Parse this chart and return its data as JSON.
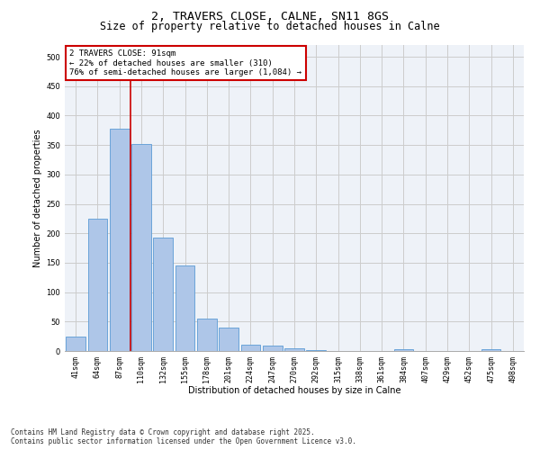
{
  "title_line1": "2, TRAVERS CLOSE, CALNE, SN11 8GS",
  "title_line2": "Size of property relative to detached houses in Calne",
  "xlabel": "Distribution of detached houses by size in Calne",
  "ylabel": "Number of detached properties",
  "categories": [
    "41sqm",
    "64sqm",
    "87sqm",
    "110sqm",
    "132sqm",
    "155sqm",
    "178sqm",
    "201sqm",
    "224sqm",
    "247sqm",
    "270sqm",
    "292sqm",
    "315sqm",
    "338sqm",
    "361sqm",
    "384sqm",
    "407sqm",
    "429sqm",
    "452sqm",
    "475sqm",
    "498sqm"
  ],
  "values": [
    25,
    225,
    378,
    352,
    193,
    145,
    55,
    40,
    11,
    9,
    5,
    2,
    0,
    0,
    0,
    3,
    0,
    0,
    0,
    3,
    0
  ],
  "bar_color": "#aec6e8",
  "bar_edge_color": "#5b9bd5",
  "vline_x_index": 2.5,
  "vline_color": "#cc0000",
  "annotation_text": "2 TRAVERS CLOSE: 91sqm\n← 22% of detached houses are smaller (310)\n76% of semi-detached houses are larger (1,084) →",
  "annotation_box_color": "#cc0000",
  "annotation_box_facecolor": "white",
  "ylim": [
    0,
    520
  ],
  "yticks": [
    0,
    50,
    100,
    150,
    200,
    250,
    300,
    350,
    400,
    450,
    500
  ],
  "grid_color": "#cccccc",
  "bg_color": "#eef2f8",
  "footnote": "Contains HM Land Registry data © Crown copyright and database right 2025.\nContains public sector information licensed under the Open Government Licence v3.0.",
  "title_fontsize": 9.5,
  "subtitle_fontsize": 8.5,
  "axis_label_fontsize": 7,
  "tick_fontsize": 6,
  "annotation_fontsize": 6.5,
  "footnote_fontsize": 5.5
}
